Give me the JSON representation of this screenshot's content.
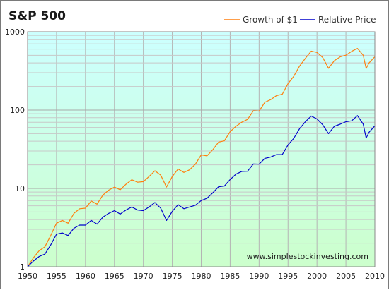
{
  "chart_data": {
    "type": "line",
    "title": "S&P 500",
    "xlabel": "",
    "ylabel": "",
    "log_scale_y": true,
    "xlim": [
      1950,
      2010
    ],
    "ylim": [
      1,
      1000
    ],
    "grid": true,
    "legend_placement": "top-right",
    "background_gradient": [
      "#ccffff",
      "#ccffcc"
    ],
    "x_tick_labels": [
      "1950",
      "1955",
      "1960",
      "1965",
      "1970",
      "1975",
      "1980",
      "1985",
      "1990",
      "1995",
      "2000",
      "2005",
      "2010"
    ],
    "x_ticks": [
      1950,
      1955,
      1960,
      1965,
      1970,
      1975,
      1980,
      1985,
      1990,
      1995,
      2000,
      2005,
      2010
    ],
    "y_tick_labels": [
      "1",
      "10",
      "100",
      "1000"
    ],
    "y_ticks": [
      1,
      10,
      100,
      1000
    ],
    "annotation": "www.simplestockinvesting.com",
    "series": [
      {
        "name": "Growth of $1",
        "color": "#ff7f0e",
        "x": [
          1950,
          1951,
          1952,
          1953,
          1954,
          1955,
          1956,
          1957,
          1958,
          1959,
          1960,
          1961,
          1962,
          1963,
          1964,
          1965,
          1966,
          1967,
          1968,
          1969,
          1970,
          1971,
          1972,
          1973,
          1974,
          1975,
          1976,
          1977,
          1978,
          1979,
          1980,
          1981,
          1982,
          1983,
          1984,
          1985,
          1986,
          1987,
          1988,
          1989,
          1990,
          1991,
          1992,
          1993,
          1994,
          1995,
          1996,
          1997,
          1998,
          1999,
          2000,
          2001,
          2002,
          2003,
          2004,
          2005,
          2006,
          2007,
          2008,
          2008.5,
          2009,
          2010
        ],
        "y": [
          1.0,
          1.3,
          1.6,
          1.8,
          2.5,
          3.6,
          3.9,
          3.6,
          4.8,
          5.5,
          5.6,
          6.9,
          6.3,
          8.2,
          9.5,
          10.4,
          9.6,
          11.3,
          12.9,
          12.0,
          12.2,
          14.2,
          16.8,
          14.8,
          10.4,
          14.2,
          17.7,
          16.0,
          17.3,
          20.4,
          26.8,
          26.0,
          31.2,
          39.0,
          40.5,
          53.0,
          62.0,
          70.0,
          76.0,
          98.0,
          97.0,
          126.0,
          136.0,
          153.0,
          159.0,
          218.0,
          270.0,
          365.0,
          458.0,
          565.0,
          545.0,
          469.0,
          342.0,
          427.0,
          478.0,
          502.0,
          563.0,
          613.0,
          500.0,
          340.0,
          400.0,
          480.0
        ]
      },
      {
        "name": "Relative Price",
        "color": "#0000cc",
        "x": [
          1950,
          1951,
          1952,
          1953,
          1954,
          1955,
          1956,
          1957,
          1958,
          1959,
          1960,
          1961,
          1962,
          1963,
          1964,
          1965,
          1966,
          1967,
          1968,
          1969,
          1970,
          1971,
          1972,
          1973,
          1974,
          1975,
          1976,
          1977,
          1978,
          1979,
          1980,
          1981,
          1982,
          1983,
          1984,
          1985,
          1986,
          1987,
          1988,
          1989,
          1990,
          1991,
          1992,
          1993,
          1994,
          1995,
          1996,
          1997,
          1998,
          1999,
          2000,
          2001,
          2002,
          2003,
          2004,
          2005,
          2006,
          2007,
          2008,
          2008.5,
          2009,
          2010
        ],
        "y": [
          1.0,
          1.18,
          1.35,
          1.45,
          1.9,
          2.6,
          2.7,
          2.5,
          3.1,
          3.4,
          3.4,
          3.9,
          3.5,
          4.3,
          4.8,
          5.2,
          4.7,
          5.3,
          5.8,
          5.3,
          5.2,
          5.8,
          6.6,
          5.6,
          3.9,
          5.1,
          6.2,
          5.5,
          5.8,
          6.1,
          7.0,
          7.5,
          8.8,
          10.5,
          10.7,
          13.0,
          15.2,
          16.5,
          16.6,
          20.5,
          20.4,
          24.2,
          25.1,
          27.0,
          27.0,
          36.0,
          43.6,
          58.0,
          71.0,
          84.0,
          77.0,
          65.0,
          50.0,
          62.0,
          66.0,
          71.0,
          73.0,
          85.0,
          66.0,
          44.0,
          52.0,
          63.0
        ]
      }
    ]
  }
}
